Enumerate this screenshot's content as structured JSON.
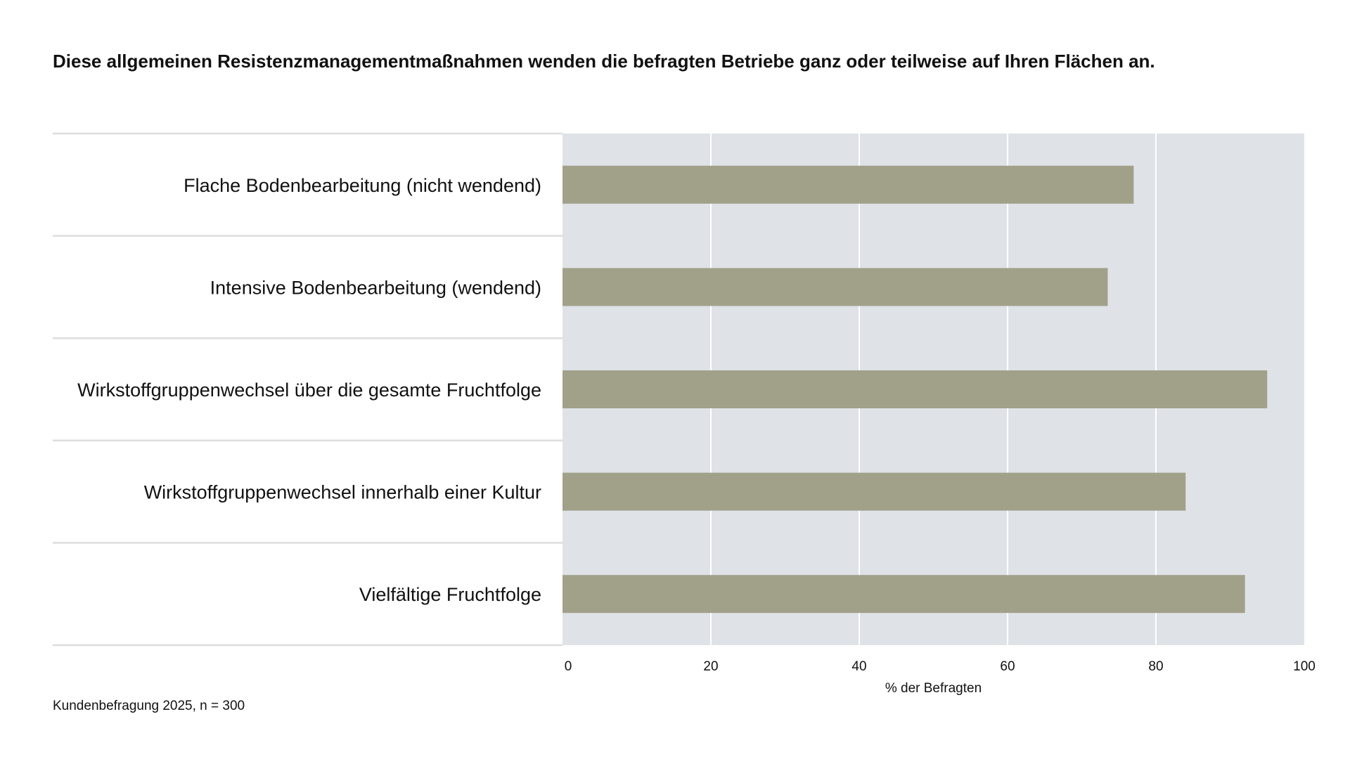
{
  "chart_data": {
    "type": "bar",
    "orientation": "horizontal",
    "title": "Diese allgemeinen Resistenzmanagementmaßnahmen wenden die befragten Betriebe ganz oder teilweise auf Ihren Flächen an.",
    "categories": [
      "Flache Bodenbearbeitung (nicht wendend)",
      "Intensive Bodenbearbeitung (wendend)",
      "Wirkstoffgruppenwechsel über die gesamte Fruchtfolge",
      "Wirkstoffgruppenwechsel innerhalb einer Kultur",
      "Vielfältige Fruchtfolge"
    ],
    "values": [
      77,
      73.5,
      95,
      84,
      92
    ],
    "xlabel": "% der Befragten",
    "ylabel": "",
    "xlim": [
      0,
      100
    ],
    "xticks": [
      0,
      20,
      40,
      60,
      80,
      100
    ],
    "grid": true,
    "legend": "none",
    "note": "Kundenbefragung 2025, n = 300",
    "colors": {
      "bar": "#a1a18a",
      "plot_background": "#dfe2e6",
      "gridline": "#ffffff",
      "separator": "#dddddd"
    }
  }
}
